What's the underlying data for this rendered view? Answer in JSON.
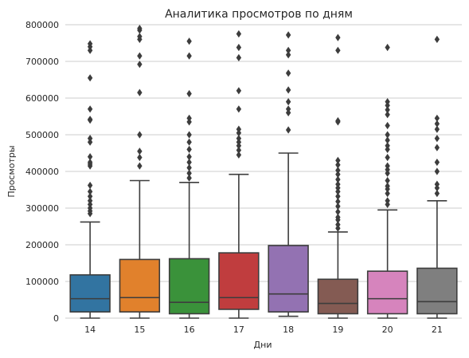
{
  "chart_data": {
    "type": "box",
    "title": "Аналитика просмотров по дням",
    "xlabel": "Дни",
    "ylabel": "Просмотры",
    "ylim": [
      0,
      800000
    ],
    "yticks": [
      0,
      100000,
      200000,
      300000,
      400000,
      500000,
      600000,
      700000,
      800000
    ],
    "yticklabels": [
      "0",
      "100000",
      "200000",
      "300000",
      "400000",
      "500000",
      "600000",
      "700000",
      "800000"
    ],
    "grid": "horizontal",
    "categories": [
      "14",
      "15",
      "16",
      "17",
      "18",
      "19",
      "20",
      "21"
    ],
    "colors": [
      "#3274a1",
      "#e1812c",
      "#3a923a",
      "#c03d3e",
      "#9372b2",
      "#845b53",
      "#d684bd",
      "#7f7f7f"
    ],
    "boxes": [
      {
        "min": 0,
        "q1": 17000,
        "median": 53000,
        "q3": 118000,
        "max": 262000,
        "outliers": [
          285000,
          292000,
          300000,
          310000,
          320000,
          332000,
          345000,
          362000,
          415000,
          420000,
          425000,
          440000,
          480000,
          490000,
          540000,
          542000,
          570000,
          655000,
          730000,
          740000,
          748000
        ]
      },
      {
        "min": 0,
        "q1": 17000,
        "median": 56000,
        "q3": 160000,
        "max": 375000,
        "outliers": [
          415000,
          438000,
          455000,
          500000,
          615000,
          692000,
          715000,
          760000,
          768000,
          785000,
          790000
        ]
      },
      {
        "min": 0,
        "q1": 12000,
        "median": 43000,
        "q3": 162000,
        "max": 370000,
        "outliers": [
          382000,
          395000,
          410000,
          425000,
          440000,
          460000,
          480000,
          500000,
          535000,
          545000,
          612000,
          715000,
          755000
        ]
      },
      {
        "min": 0,
        "q1": 24000,
        "median": 56000,
        "q3": 178000,
        "max": 392000,
        "outliers": [
          445000,
          458000,
          470000,
          480000,
          490000,
          505000,
          515000,
          570000,
          620000,
          710000,
          738000,
          775000
        ]
      },
      {
        "min": 5000,
        "q1": 17000,
        "median": 66000,
        "q3": 198000,
        "max": 450000,
        "outliers": [
          513000,
          560000,
          570000,
          590000,
          622000,
          668000,
          718000,
          730000,
          772000
        ]
      },
      {
        "min": 0,
        "q1": 12000,
        "median": 40000,
        "q3": 106000,
        "max": 235000,
        "outliers": [
          245000,
          255000,
          268000,
          275000,
          290000,
          305000,
          318000,
          332000,
          345000,
          355000,
          365000,
          378000,
          392000,
          403000,
          418000,
          430000,
          535000,
          538000,
          730000,
          765000
        ]
      },
      {
        "min": 0,
        "q1": 12000,
        "median": 53000,
        "q3": 128000,
        "max": 295000,
        "outliers": [
          310000,
          320000,
          340000,
          352000,
          360000,
          375000,
          395000,
          405000,
          415000,
          438000,
          460000,
          470000,
          485000,
          500000,
          525000,
          555000,
          568000,
          580000,
          590000,
          738000
        ]
      },
      {
        "min": 0,
        "q1": 12000,
        "median": 45000,
        "q3": 136000,
        "max": 320000,
        "outliers": [
          340000,
          355000,
          365000,
          400000,
          425000,
          465000,
          490000,
          515000,
          530000,
          545000,
          760000
        ]
      }
    ]
  }
}
